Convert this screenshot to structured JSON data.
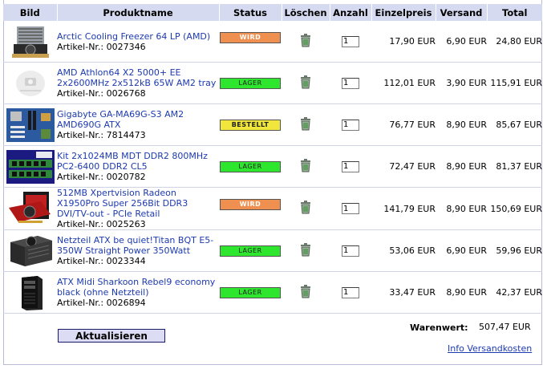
{
  "table": {
    "headers": {
      "image": "Bild",
      "product": "Produktname",
      "status": "Status",
      "delete": "Löschen",
      "quantity": "Anzahl",
      "unit_price": "Einzelpreis",
      "shipping": "Versand",
      "total": "Total"
    },
    "rows": [
      {
        "name": "Arctic Cooling Freezer 64 LP (AMD)",
        "article": "Artikel-Nr.: 0027346",
        "status": "WIRD BESTELLT",
        "status_color": "#f09050",
        "qty": "1",
        "unit_price": "17,90 EUR",
        "shipping": "6,90 EUR",
        "total": "24,80 EUR",
        "icon": "cpu-cooler-product-image"
      },
      {
        "name": "AMD Athlon64 X2 5000+ EE 2x2600MHz 2x512kB 65W AM2 tray",
        "article": "Artikel-Nr.: 0026768",
        "status": "LAGER",
        "status_color": "#2ee62e",
        "qty": "1",
        "unit_price": "112,01 EUR",
        "shipping": "3,90 EUR",
        "total": "115,91 EUR",
        "icon": "no-image-placeholder"
      },
      {
        "name": "Gigabyte GA-MA69G-S3 AM2 AMD690G ATX",
        "article": "Artikel-Nr.: 7814473",
        "status": "BESTELLT",
        "status_color": "#f0e63c",
        "qty": "1",
        "unit_price": "76,77 EUR",
        "shipping": "8,90 EUR",
        "total": "85,67 EUR",
        "icon": "motherboard-product-image"
      },
      {
        "name": "Kit 2x1024MB MDT DDR2 800MHz PC2-6400 DDR2 CL5",
        "article": "Artikel-Nr.: 0020782",
        "status": "LAGER",
        "status_color": "#2ee62e",
        "qty": "1",
        "unit_price": "72,47 EUR",
        "shipping": "8,90 EUR",
        "total": "81,37 EUR",
        "icon": "ram-kit-product-image"
      },
      {
        "name": "512MB Xpertvision Radeon X1950Pro Super 256Bit DDR3 DVI/TV-out - PCIe Retail",
        "article": "Artikel-Nr.: 0025263",
        "status": "WIRD BESTELLT",
        "status_color": "#f09050",
        "qty": "1",
        "unit_price": "141,79 EUR",
        "shipping": "8,90 EUR",
        "total": "150,69 EUR",
        "icon": "graphics-card-product-image"
      },
      {
        "name": "Netzteil ATX be quiet!Titan BQT E5-350W Straight Power 350Watt",
        "article": "Artikel-Nr.: 0023344",
        "status": "LAGER",
        "status_color": "#2ee62e",
        "qty": "1",
        "unit_price": "53,06 EUR",
        "shipping": "6,90 EUR",
        "total": "59,96 EUR",
        "icon": "power-supply-product-image"
      },
      {
        "name": "ATX Midi Sharkoon Rebel9 economy black (ohne Netzteil)",
        "article": "Artikel-Nr.: 0026894",
        "status": "LAGER",
        "status_color": "#2ee62e",
        "qty": "1",
        "unit_price": "33,47 EUR",
        "shipping": "8,90 EUR",
        "total": "42,37 EUR",
        "icon": "pc-case-product-image"
      }
    ]
  },
  "footer": {
    "update_button": "Aktualisieren",
    "warenwert_label": "Warenwert:",
    "warenwert_value": "507,47 EUR",
    "shipping_info_link": "Info Versandkosten"
  }
}
